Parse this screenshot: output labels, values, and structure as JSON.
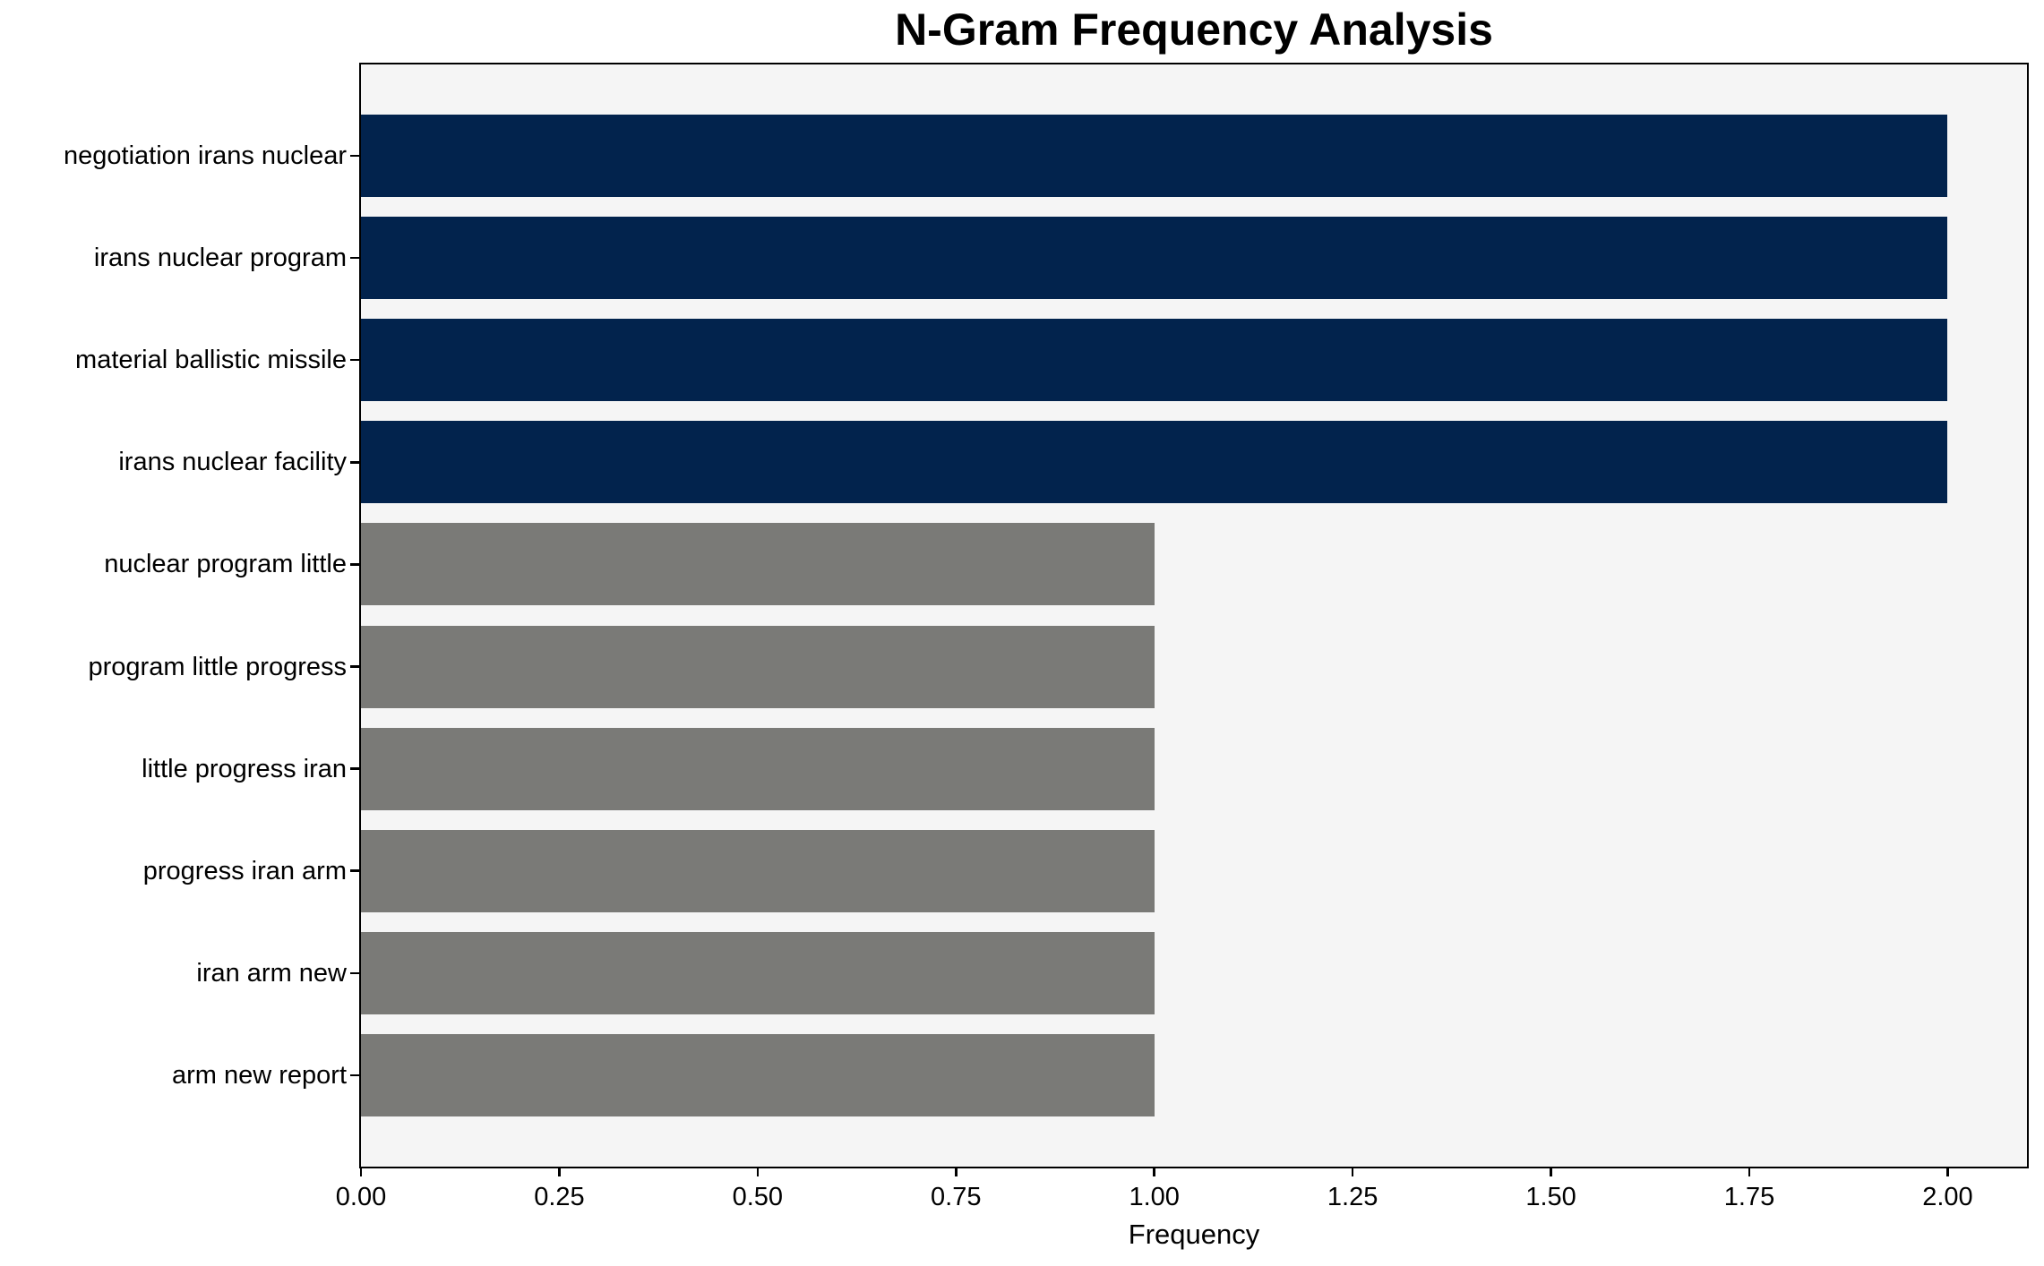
{
  "chart_data": {
    "type": "bar",
    "orientation": "horizontal",
    "title": "N-Gram Frequency Analysis",
    "xlabel": "Frequency",
    "ylabel": "",
    "categories": [
      "negotiation irans nuclear",
      "irans nuclear program",
      "material ballistic missile",
      "irans nuclear facility",
      "nuclear program little",
      "program little progress",
      "little progress iran",
      "progress iran arm",
      "iran arm new",
      "arm new report"
    ],
    "values": [
      2,
      2,
      2,
      2,
      1,
      1,
      1,
      1,
      1,
      1
    ],
    "bar_colors": [
      "#02234d",
      "#02234d",
      "#02234d",
      "#02234d",
      "#7a7a77",
      "#7a7a77",
      "#7a7a77",
      "#7a7a77",
      "#7a7a77",
      "#7a7a77"
    ],
    "xlim": [
      0,
      2.1
    ],
    "xticks": [
      {
        "value": 0.0,
        "label": "0.00"
      },
      {
        "value": 0.25,
        "label": "0.25"
      },
      {
        "value": 0.5,
        "label": "0.50"
      },
      {
        "value": 0.75,
        "label": "0.75"
      },
      {
        "value": 1.0,
        "label": "1.00"
      },
      {
        "value": 1.25,
        "label": "1.25"
      },
      {
        "value": 1.5,
        "label": "1.50"
      },
      {
        "value": 1.75,
        "label": "1.75"
      },
      {
        "value": 2.0,
        "label": "2.00"
      }
    ],
    "grid": false,
    "legend": null,
    "colors": {
      "plot_background": "#f5f5f5",
      "figure_background": "#ffffff",
      "axis": "#000000",
      "text": "#000000"
    }
  }
}
